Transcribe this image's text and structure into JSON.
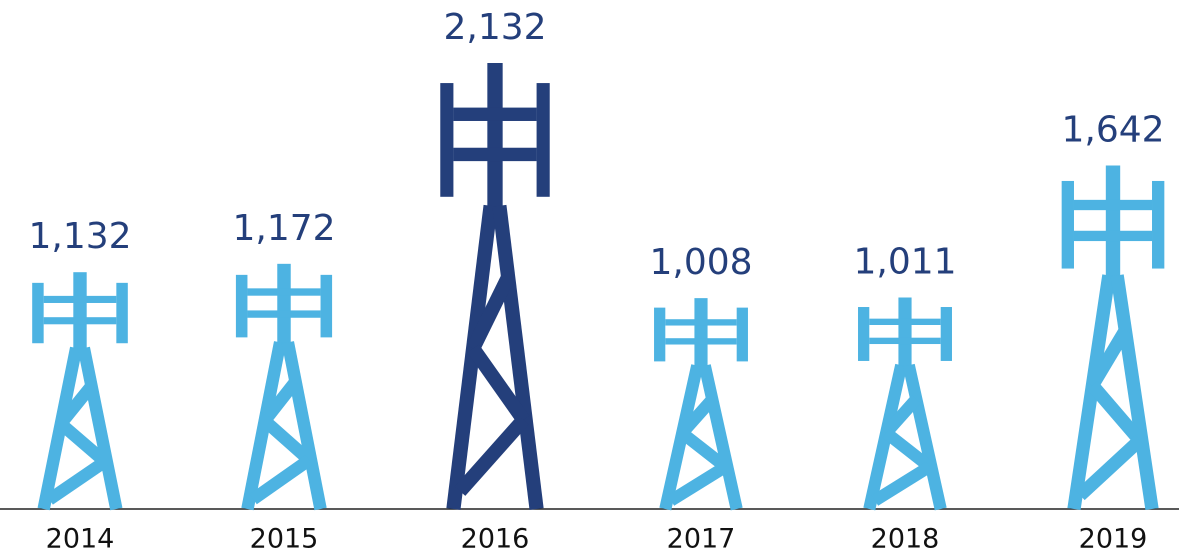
{
  "chart_data": {
    "type": "bar",
    "categories": [
      "2014",
      "2015",
      "2016",
      "2017",
      "2018",
      "2019"
    ],
    "values": [
      1132,
      1172,
      2132,
      1008,
      1011,
      1642
    ],
    "value_labels": [
      "1,132",
      "1,172",
      "2,132",
      "1,008",
      "1,011",
      "1,642"
    ],
    "colors": [
      "#4db3e2",
      "#4db3e2",
      "#243f7b",
      "#4db3e2",
      "#4db3e2",
      "#4db3e2"
    ],
    "label_color": "#243f7b"
  }
}
